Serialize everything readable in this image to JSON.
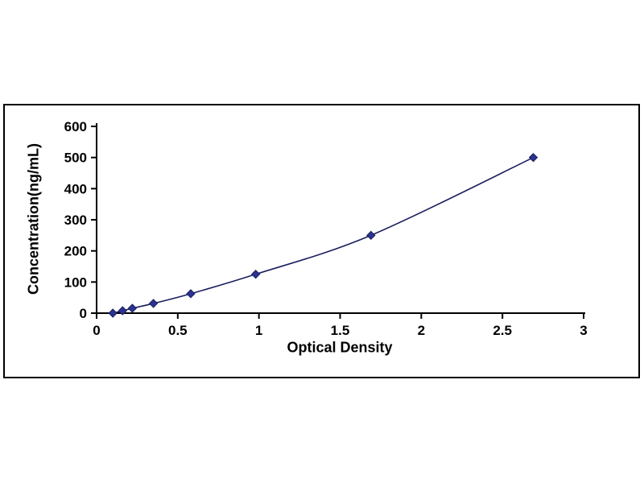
{
  "chart_data": {
    "type": "line",
    "title": "",
    "xlabel": "Optical Density",
    "ylabel": "Concentration(ng/mL)",
    "x": [
      0.1,
      0.16,
      0.22,
      0.35,
      0.58,
      0.98,
      1.69,
      2.69
    ],
    "y": [
      0,
      7.8,
      15.6,
      31.2,
      62.5,
      125,
      250,
      500
    ],
    "xlim": [
      0,
      3
    ],
    "ylim": [
      0,
      600
    ],
    "x_ticks": [
      0,
      0.5,
      1,
      1.5,
      2,
      2.5,
      3
    ],
    "x_tick_labels": [
      "0",
      "0.5",
      "1",
      "1.5",
      "2",
      "2.5",
      "3"
    ],
    "y_ticks": [
      0,
      100,
      200,
      300,
      400,
      500,
      600
    ],
    "y_tick_labels": [
      "0",
      "100",
      "200",
      "300",
      "400",
      "500",
      "600"
    ],
    "grid": false,
    "legend": "none",
    "marker": "diamond",
    "colors": {
      "line": "#1a1f5e",
      "marker": "#2b3290",
      "axis": "#000000",
      "text": "#000000",
      "frame_border": "#000000",
      "background": "#ffffff"
    }
  }
}
